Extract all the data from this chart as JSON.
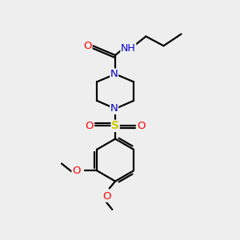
{
  "bg_color": "#eeeeee",
  "atom_colors": {
    "C": "#000000",
    "N": "#0000cc",
    "O": "#ff0000",
    "S": "#cccc00",
    "H": "#606060"
  },
  "line_color": "#000000",
  "line_width": 1.6,
  "figsize": [
    3.0,
    3.0
  ],
  "dpi": 100
}
